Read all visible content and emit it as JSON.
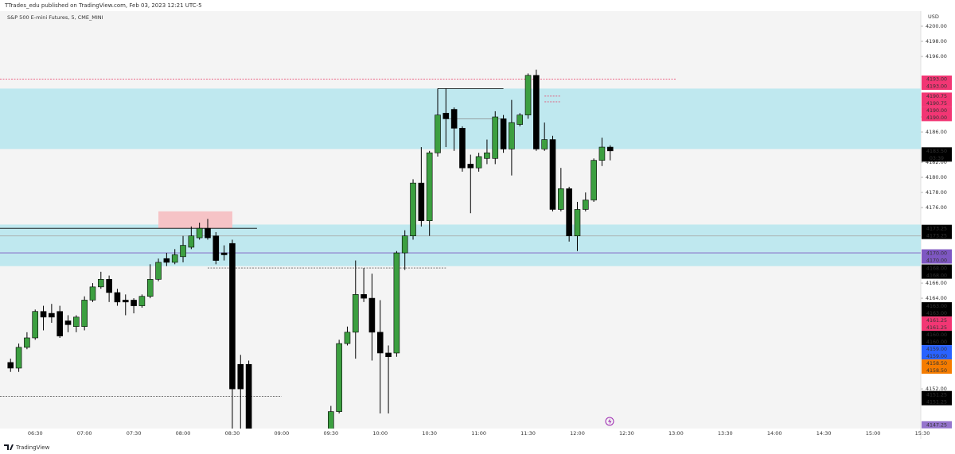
{
  "header": {
    "title": "TTrades_edu published on TradingView.com, Feb 03, 2023 12:21 UTC-5",
    "footer": "TradingView"
  },
  "chart_data": {
    "type": "candlestick",
    "title": "S&P 500 E-mini Futures, 5, CME_MINI",
    "y_axis_label": "USD",
    "up_color": "#3c9f40",
    "down_color": "#000000",
    "x": [
      "06:15",
      "06:20",
      "06:25",
      "06:30",
      "06:35",
      "06:40",
      "06:45",
      "06:50",
      "06:55",
      "07:00",
      "07:05",
      "07:10",
      "07:15",
      "07:20",
      "07:25",
      "07:30",
      "07:35",
      "07:40",
      "07:45",
      "07:50",
      "07:55",
      "08:00",
      "08:05",
      "08:10",
      "08:15",
      "08:20",
      "08:25",
      "08:30",
      "08:35",
      "08:40",
      "09:30",
      "09:35",
      "09:40",
      "09:45",
      "09:50",
      "09:55",
      "10:00",
      "10:05",
      "10:10",
      "10:15",
      "10:20",
      "10:25",
      "10:30",
      "10:35",
      "10:40",
      "10:45",
      "10:50",
      "10:55",
      "11:00",
      "11:05",
      "11:10",
      "11:15",
      "11:20",
      "11:25",
      "11:30",
      "11:35",
      "11:40",
      "11:45",
      "11:50",
      "11:55",
      "12:00",
      "12:05",
      "12:10",
      "12:15",
      "12:20"
    ],
    "open": [
      4155.5,
      4154.75,
      4157.5,
      4158.75,
      4162.25,
      4162,
      4162.25,
      4161,
      4160.25,
      4160.25,
      4163.75,
      4165.5,
      4166.5,
      4164.75,
      4163.75,
      4163.75,
      4163,
      4164.25,
      4166.5,
      4169.25,
      4168.75,
      4169.5,
      4170.75,
      4172,
      4173.25,
      4172.25,
      4170,
      4171.25,
      4155.25,
      4155.25,
      4146,
      4149,
      4158,
      4159.5,
      4164.5,
      4164,
      4159.5,
      4156.75,
      4156.75,
      4170,
      4172.25,
      4179.25,
      4174.25,
      4183.25,
      4188.5,
      4189,
      4186.5,
      4181.75,
      4181.25,
      4182.5,
      4182.5,
      4187.75,
      4183.75,
      4187,
      4188.25,
      4193.5,
      4183.75,
      4185,
      4175.75,
      4178.5,
      4172.25,
      4175.75,
      4177,
      4182.25,
      4184
    ],
    "high": [
      4156,
      4158,
      4159.5,
      4162.5,
      4163,
      4163.25,
      4163,
      4161.75,
      4161.75,
      4164.25,
      4166,
      4167.5,
      4167,
      4165.25,
      4164.5,
      4164,
      4164.5,
      4168.5,
      4169.25,
      4170,
      4170.5,
      4172.25,
      4173.5,
      4174,
      4174.5,
      4172.75,
      4171,
      4171.75,
      4156.5,
      4155.75,
      4149.75,
      4158.5,
      4160.25,
      4169,
      4168,
      4167.25,
      4163.75,
      4157.75,
      4170.25,
      4173,
      4179.75,
      4184,
      4183.5,
      4191.75,
      4191.75,
      4189.25,
      4186.75,
      4183,
      4183.25,
      4185,
      4188.75,
      4188.25,
      4190.25,
      4188.5,
      4193.75,
      4194.25,
      4187.25,
      4185.5,
      4181.25,
      4178.75,
      4176.75,
      4178,
      4182.5,
      4185.25,
      4184.25
    ],
    "low": [
      4154.25,
      4154.25,
      4157.25,
      4158.5,
      4159.75,
      4160.75,
      4158.75,
      4159.5,
      4159.5,
      4159.75,
      4163.5,
      4165.25,
      4163.5,
      4163,
      4161.75,
      4162,
      4162.75,
      4164,
      4166.25,
      4168.25,
      4168.5,
      4168.75,
      4170.5,
      4171.75,
      4171.75,
      4168.5,
      4169,
      4145,
      4145,
      4145,
      4145.5,
      4148.75,
      4157.75,
      4156,
      4163.5,
      4155.75,
      4148.75,
      4148.75,
      4156.25,
      4167.75,
      4171.75,
      4173.5,
      4172.25,
      4182.75,
      4184,
      4183.5,
      4180.75,
      4175.25,
      4180.75,
      4181.75,
      4181.75,
      4183.25,
      4180.25,
      4186.75,
      4187.75,
      4183.5,
      4183.5,
      4175.5,
      4175.5,
      4171.5,
      4170.25,
      4175.5,
      4176.75,
      4181.5,
      4182.25
    ],
    "close": [
      4154.75,
      4157.5,
      4158.75,
      4162.25,
      4161.5,
      4161.5,
      4159,
      4160.5,
      4161.5,
      4163.75,
      4165.5,
      4166.5,
      4164.75,
      4163.5,
      4163.5,
      4163,
      4164.25,
      4166.5,
      4168.75,
      4168.75,
      4169.75,
      4171,
      4172.25,
      4173.25,
      4172,
      4169,
      4169.75,
      4152,
      4152,
      4145.5,
      4149,
      4158,
      4159.5,
      4164.5,
      4164,
      4159.5,
      4156.75,
      4156.25,
      4170,
      4172.25,
      4179.25,
      4174.25,
      4183.25,
      4188.25,
      4187.75,
      4186.5,
      4181.25,
      4181.25,
      4182.75,
      4183.25,
      4188,
      4183.75,
      4187.25,
      4188.25,
      4193.5,
      4183.75,
      4185,
      4175.75,
      4178.5,
      4172.25,
      4175.75,
      4177,
      4182.25,
      4184,
      4183.5
    ],
    "xlim": [
      "06:11",
      "15:30"
    ],
    "xticks": [
      "06:30",
      "07:00",
      "07:30",
      "08:00",
      "08:30",
      "09:00",
      "09:30",
      "10:00",
      "10:30",
      "11:00",
      "11:30",
      "12:00",
      "12:30",
      "13:00",
      "13:30",
      "14:00",
      "14:30",
      "15:00",
      "15:30"
    ],
    "ylim": [
      4146.75,
      4202
    ],
    "yticks": [
      {
        "value": 4200,
        "label": "4200.00"
      },
      {
        "value": 4198,
        "label": "4198.00"
      },
      {
        "value": 4196,
        "label": "4196.00"
      },
      {
        "value": 4188,
        "label": "4188.00"
      },
      {
        "value": 4186,
        "label": "4186.00"
      },
      {
        "value": 4182,
        "label": "4182.00"
      },
      {
        "value": 4180,
        "label": "4180.00"
      },
      {
        "value": 4178,
        "label": "4178.00"
      },
      {
        "value": 4176,
        "label": "4176.00"
      },
      {
        "value": 4166,
        "label": "4166.00"
      },
      {
        "value": 4164,
        "label": "4164.00"
      },
      {
        "value": 4152,
        "label": "4152.00"
      }
    ],
    "zones": [
      {
        "top": 4191.75,
        "bottom": 4183.75,
        "color": "#bfe8ef"
      },
      {
        "top": 4173.75,
        "bottom": 4168.25,
        "color": "#bfe8ef"
      },
      {
        "top": 4175.5,
        "bottom": 4173.25,
        "start": "07:45",
        "end": "08:30",
        "color": "#f6c3c6"
      }
    ],
    "lines": [
      {
        "value": 4193,
        "end": "13:00",
        "color": "#e8365d",
        "dash": true
      },
      {
        "value": 4191.75,
        "start": "10:35",
        "end": "11:15",
        "color": "#000000"
      },
      {
        "value": 4190.75,
        "start": "11:40",
        "end": "11:50",
        "color": "#e8365d",
        "dash": true
      },
      {
        "value": 4190,
        "start": "11:40",
        "end": "11:50",
        "color": "#e8365d",
        "dash": true
      },
      {
        "value": 4187.75,
        "start": "10:40",
        "end": "11:15",
        "color": "#888888"
      },
      {
        "value": 4173.25,
        "end": "08:45",
        "color": "#000000"
      },
      {
        "value": 4172.25,
        "color": "#aaaaaa"
      },
      {
        "value": 4170,
        "color": "#7e57c2"
      },
      {
        "value": 4168,
        "start": "08:15",
        "end": "10:40",
        "color": "#666666",
        "dash": true
      },
      {
        "value": 4151,
        "end": "09:00",
        "color": "#444444",
        "dash": true
      }
    ],
    "price_labels": [
      {
        "value": 4193,
        "label": "4193.00",
        "color": "#f23674"
      },
      {
        "value": 4190.75,
        "label": "4190.75",
        "color": "#f23674"
      },
      {
        "value": 4190,
        "label": "4190.00",
        "color": "#f23674"
      },
      {
        "value": 4183.5,
        "label": "4183.50",
        "sub": "03:39",
        "color": "#000000"
      },
      {
        "value": 4173.25,
        "label": "4173.25",
        "color": "#000000"
      },
      {
        "value": 4170,
        "label": "4170.00",
        "color": "#7e57c2"
      },
      {
        "value": 4168,
        "label": "4168.00",
        "color": "#000000"
      },
      {
        "value": 4163,
        "label": "4163.00",
        "color": "#000000"
      },
      {
        "value": 4161.25,
        "label": "4161.25",
        "color": "#f23674"
      },
      {
        "value": 4160,
        "label": "4160.00",
        "color": "#000000"
      },
      {
        "value": 4159,
        "label": "4159.00",
        "color": "#2962ff"
      },
      {
        "value": 4158.5,
        "label": "4158.50",
        "color": "#f57c00"
      },
      {
        "value": 4151.25,
        "label": "4151.25",
        "color": "#000000"
      },
      {
        "value": 4147.25,
        "label": "4147.25",
        "color": "#9575cd",
        "single": true
      }
    ]
  }
}
